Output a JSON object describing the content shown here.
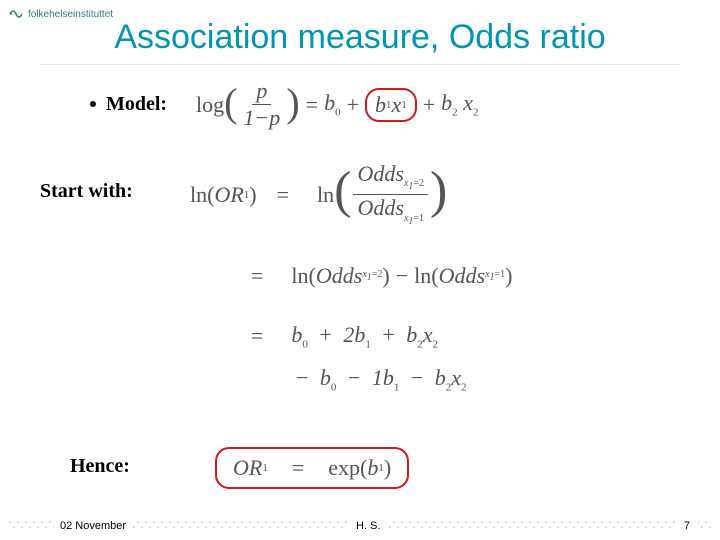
{
  "logo": {
    "text": "folkehelseinstituttet"
  },
  "title": "Association measure, Odds ratio",
  "model": {
    "label": "Model:",
    "lhs_func": "log",
    "frac_num": "p",
    "frac_den": "1−p",
    "eq_sign": "=",
    "b0": "b",
    "b0_sub": "0",
    "plus": "+",
    "b1": "b",
    "b1_sub": "1",
    "x1": "x",
    "x1_sub": "1",
    "b2": "b",
    "b2_sub": "2",
    "x2": "x",
    "x2_sub": "2"
  },
  "start_with": "Start with:",
  "hence": "Hence:",
  "eq1": {
    "ln": "ln",
    "OR": "OR",
    "OR_sub": "1",
    "eq": "=",
    "Odds_top": "Odds",
    "Odds_top_sub": "x",
    "Odds_top_sub2": "1",
    "Odds_top_val": "=2",
    "Odds_bot": "Odds",
    "Odds_bot_sub": "x",
    "Odds_bot_sub2": "1",
    "Odds_bot_val": "=1"
  },
  "eq2": {
    "eq": "=",
    "ln": "ln",
    "OddsA": "Odds",
    "OddsA_sub": "x",
    "OddsA_sub2": "1",
    "OddsA_val": "=2",
    "minus": "−",
    "OddsB": "Odds",
    "OddsB_sub": "x",
    "OddsB_sub2": "1",
    "OddsB_val": "=1"
  },
  "eq3": {
    "eq": "=",
    "terms": "b₀ + 2b₁ + b₂x₂"
  },
  "eq4": {
    "terms": "− b₀ − 1b₁ − b₂x₂"
  },
  "eq5": {
    "OR": "OR",
    "OR_sub": "1",
    "eq": "=",
    "exp": "exp",
    "arg": "b",
    "arg_sub": "1"
  },
  "footer": {
    "date": "02 November",
    "author": "H. S.",
    "page": "7"
  },
  "colors": {
    "title": "#0097b2",
    "box": "#d11a1a",
    "math": "#555555",
    "dots": "#c0c0c0"
  }
}
